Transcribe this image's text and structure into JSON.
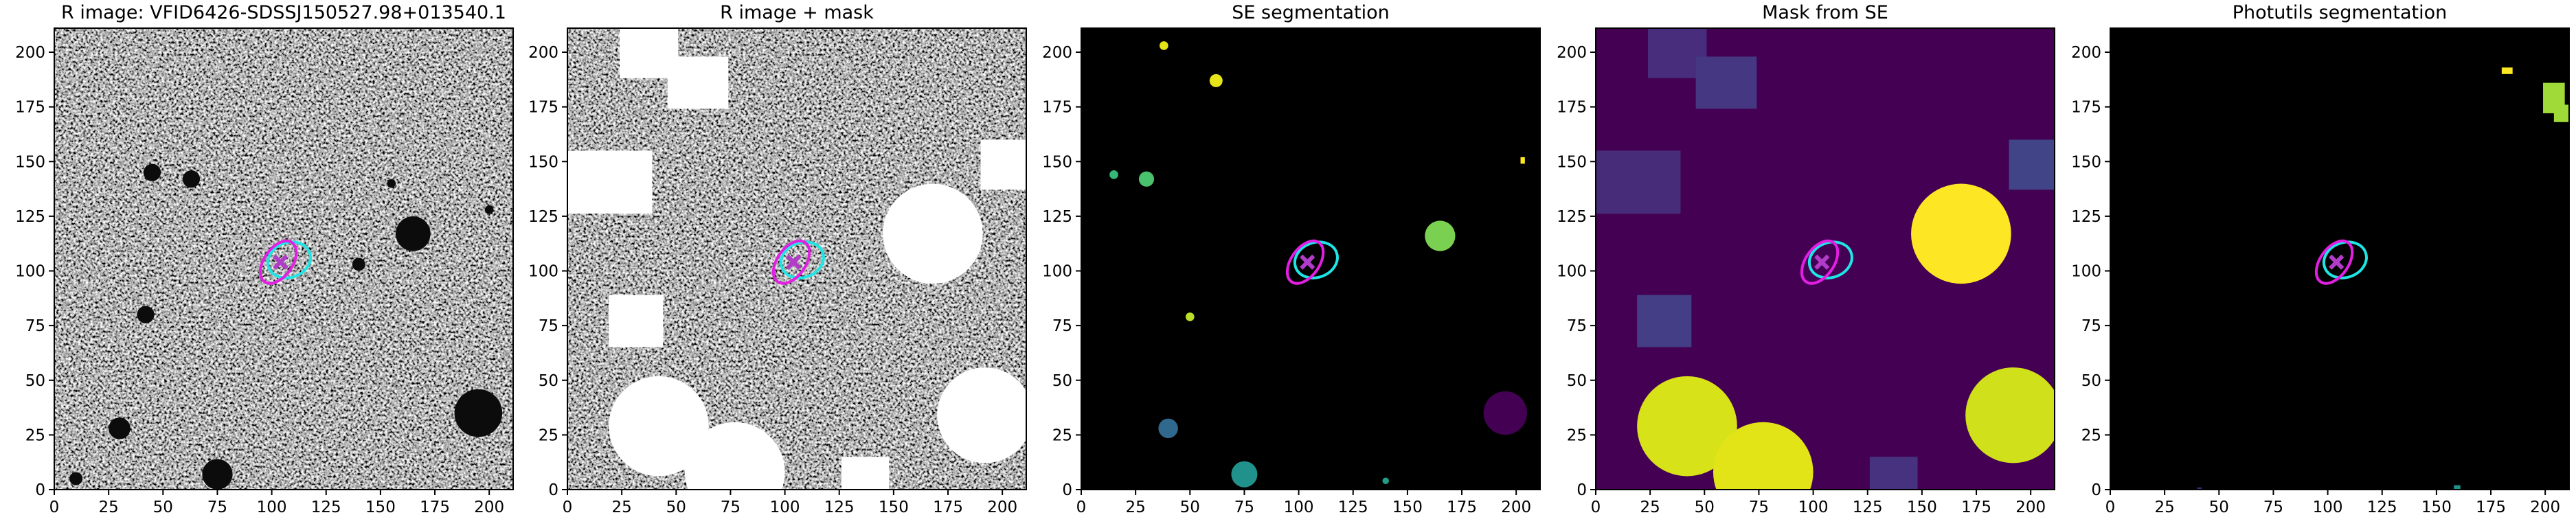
{
  "chart_data": [
    {
      "type": "image",
      "title": "R image: VFID6426-SDSSJ150527.98+013540.1",
      "xlim": [
        0,
        211
      ],
      "ylim": [
        0,
        211
      ],
      "xticks": [
        0,
        25,
        50,
        75,
        100,
        125,
        150,
        175,
        200
      ],
      "yticks": [
        0,
        25,
        50,
        75,
        100,
        125,
        150,
        175,
        200
      ]
    },
    {
      "type": "image",
      "title": "R image + mask",
      "xlim": [
        0,
        211
      ],
      "ylim": [
        0,
        211
      ],
      "xticks": [
        0,
        25,
        50,
        75,
        100,
        125,
        150,
        175,
        200
      ],
      "yticks": [
        0,
        25,
        50,
        75,
        100,
        125,
        150,
        175,
        200
      ]
    },
    {
      "type": "image",
      "title": "SE segmentation",
      "xlim": [
        0,
        211
      ],
      "ylim": [
        0,
        211
      ],
      "xticks": [
        0,
        25,
        50,
        75,
        100,
        125,
        150,
        175,
        200
      ],
      "yticks": [
        0,
        25,
        50,
        75,
        100,
        125,
        150,
        175,
        200
      ]
    },
    {
      "type": "image",
      "title": "Mask from SE",
      "xlim": [
        0,
        211
      ],
      "ylim": [
        0,
        211
      ],
      "xticks": [
        0,
        25,
        50,
        75,
        100,
        125,
        150,
        175,
        200
      ],
      "yticks": [
        0,
        25,
        50,
        75,
        100,
        125,
        150,
        175,
        200
      ]
    },
    {
      "type": "image",
      "title": "Photutils segmentation",
      "xlim": [
        0,
        211
      ],
      "ylim": [
        0,
        211
      ],
      "xticks": [
        0,
        25,
        50,
        75,
        100,
        125,
        150,
        175,
        200
      ],
      "yticks": [
        0,
        25,
        50,
        75,
        100,
        125,
        150,
        175,
        200
      ]
    }
  ]
}
